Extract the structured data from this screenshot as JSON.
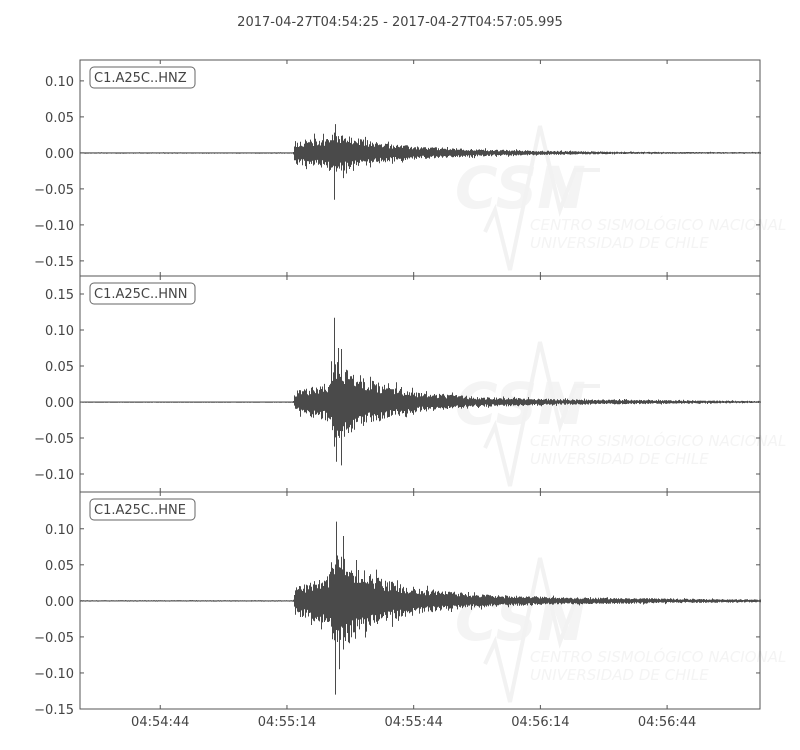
{
  "chart_data": {
    "type": "line",
    "title": "2017-04-27T04:54:25  -  2017-04-27T04:57:05.995",
    "x_start": "2017-04-27T04:54:25",
    "x_end": "2017-04-27T04:57:05.995",
    "x_ticks": [
      "04:54:44",
      "04:55:14",
      "04:55:44",
      "04:56:14",
      "04:56:44"
    ],
    "x_tick_seconds_from_start": [
      19,
      49,
      79,
      109,
      139
    ],
    "grid": false,
    "line_color": "#4a4a4a",
    "watermark": {
      "logo": "CSN",
      "line1": "CENTRO SISMOLÓGICO NACIONAL",
      "line2": "UNIVERSIDAD DE CHILE"
    },
    "panels": [
      {
        "label": "C1.A25C..HNZ",
        "ylim": [
          -0.171,
          0.129
        ],
        "y_ticks": [
          0.1,
          0.05,
          0.0,
          -0.05,
          -0.1,
          -0.15
        ],
        "y_tick_labels": [
          "0.10",
          "0.05",
          "0.00",
          "−0.05",
          "−0.10",
          "−0.15"
        ],
        "envelope": [
          [
            0,
            0.0006
          ],
          [
            50.4,
            0.0006
          ],
          [
            50.8,
            0.017
          ],
          [
            55,
            0.02
          ],
          [
            58,
            0.022
          ],
          [
            60,
            0.03
          ],
          [
            63,
            0.024
          ],
          [
            70,
            0.015
          ],
          [
            80,
            0.009
          ],
          [
            95,
            0.005
          ],
          [
            110,
            0.003
          ],
          [
            130,
            0.0015
          ],
          [
            161,
            0.001
          ]
        ],
        "peaks": [
          [
            60.5,
            0.04
          ],
          [
            60.2,
            -0.065
          ],
          [
            62.5,
            -0.035
          ]
        ]
      },
      {
        "label": "C1.A25C..HNN",
        "ylim": [
          -0.125,
          0.175
        ],
        "y_ticks": [
          0.15,
          0.1,
          0.05,
          0.0,
          -0.05,
          -0.1
        ],
        "y_tick_labels": [
          "0.15",
          "0.10",
          "0.05",
          "0.00",
          "−0.05",
          "−0.10"
        ],
        "envelope": [
          [
            0,
            0.0006
          ],
          [
            50.4,
            0.0006
          ],
          [
            50.8,
            0.015
          ],
          [
            55,
            0.022
          ],
          [
            59,
            0.028
          ],
          [
            60,
            0.065
          ],
          [
            63,
            0.05
          ],
          [
            67,
            0.035
          ],
          [
            72,
            0.025
          ],
          [
            80,
            0.014
          ],
          [
            95,
            0.007
          ],
          [
            115,
            0.004
          ],
          [
            161,
            0.0015
          ]
        ],
        "peaks": [
          [
            60.3,
            0.117
          ],
          [
            61.2,
            0.075
          ],
          [
            60.8,
            -0.083
          ],
          [
            62.0,
            -0.088
          ]
        ]
      },
      {
        "label": "C1.A25C..HNE",
        "ylim": [
          -0.15,
          0.151
        ],
        "y_ticks": [
          0.1,
          0.05,
          0.0,
          -0.05,
          -0.1,
          -0.15
        ],
        "y_tick_labels": [
          "0.10",
          "0.05",
          "0.00",
          "−0.05",
          "−0.10",
          "−0.15"
        ],
        "envelope": [
          [
            0,
            0.0008
          ],
          [
            50.4,
            0.0008
          ],
          [
            50.8,
            0.02
          ],
          [
            55,
            0.028
          ],
          [
            59,
            0.035
          ],
          [
            60,
            0.08
          ],
          [
            63,
            0.065
          ],
          [
            67,
            0.045
          ],
          [
            72,
            0.03
          ],
          [
            80,
            0.018
          ],
          [
            95,
            0.009
          ],
          [
            115,
            0.005
          ],
          [
            161,
            0.002
          ]
        ],
        "peaks": [
          [
            60.8,
            0.11
          ],
          [
            60.4,
            -0.13
          ],
          [
            61.5,
            -0.095
          ],
          [
            62.5,
            0.09
          ]
        ]
      }
    ]
  }
}
